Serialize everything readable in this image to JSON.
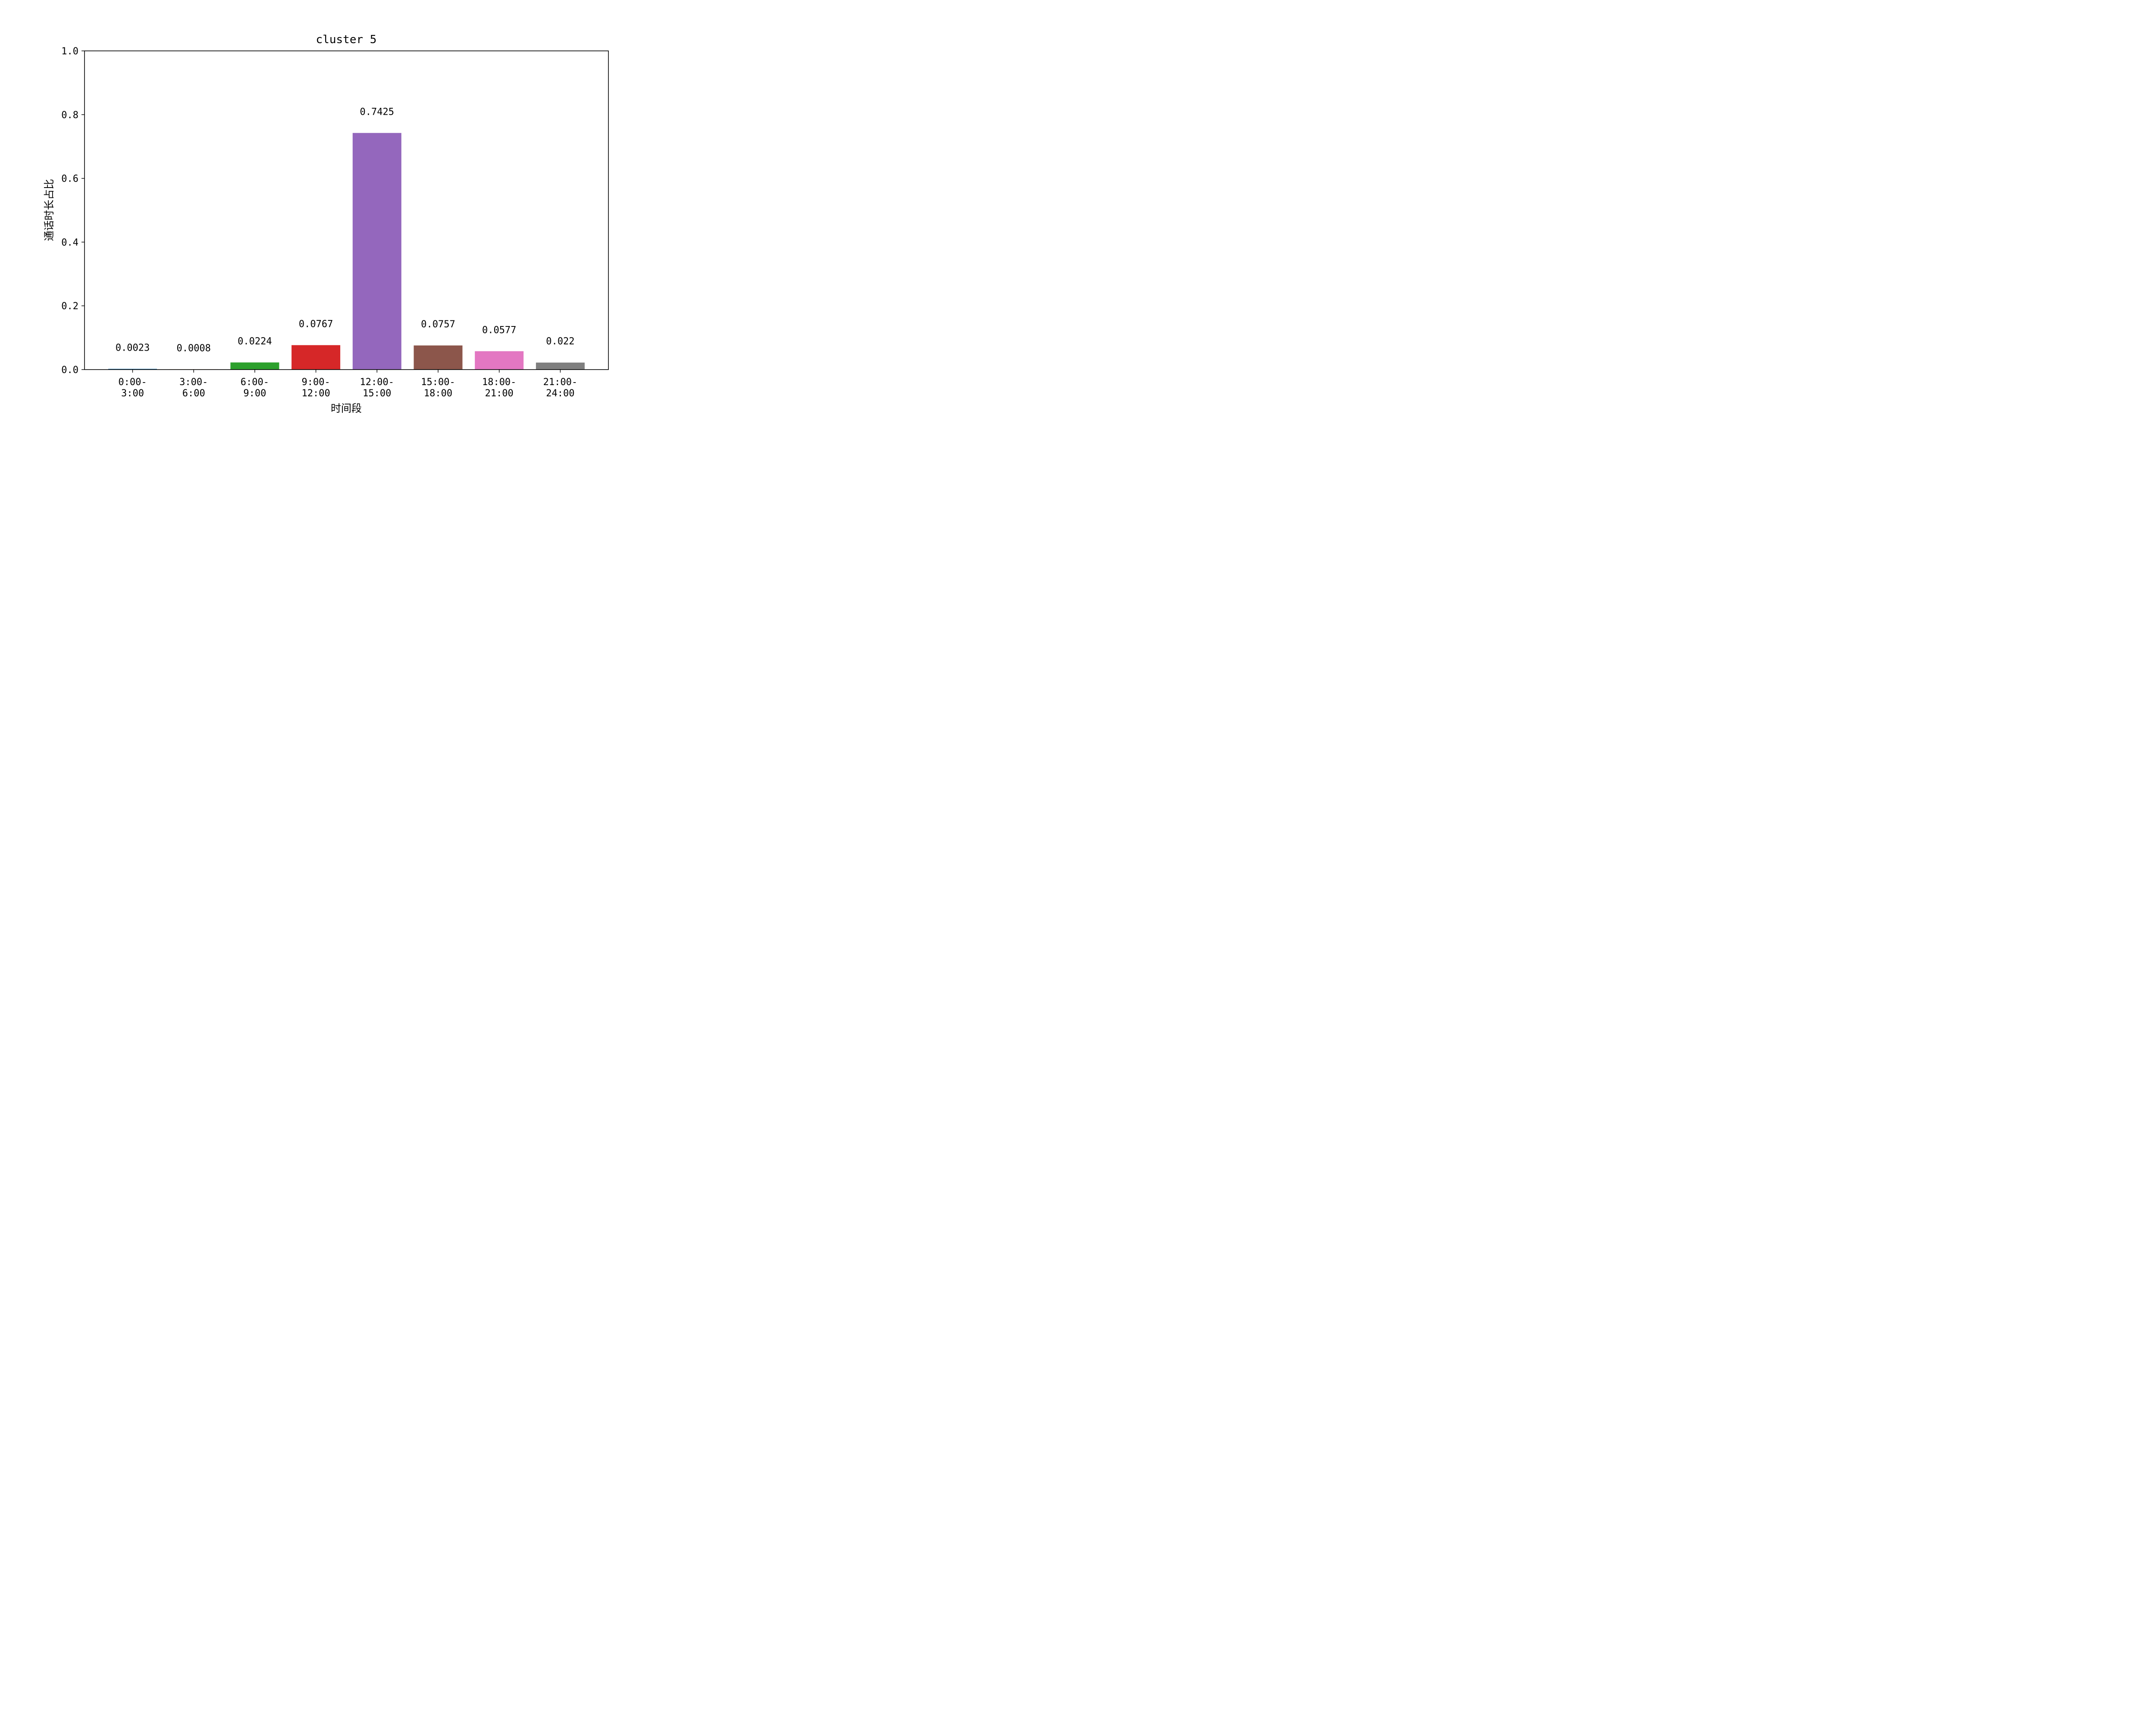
{
  "chart_data": {
    "type": "bar",
    "title": "cluster 5",
    "xlabel": "时间段",
    "ylabel": "通话时长占比",
    "ylim": [
      0,
      1.0
    ],
    "yticks": [
      "0.0",
      "0.2",
      "0.4",
      "0.6",
      "0.8",
      "1.0"
    ],
    "categories": [
      [
        "0:00-",
        "3:00"
      ],
      [
        "3:00-",
        "6:00"
      ],
      [
        "6:00-",
        "9:00"
      ],
      [
        "9:00-",
        "12:00"
      ],
      [
        "12:00-",
        "15:00"
      ],
      [
        "15:00-",
        "18:00"
      ],
      [
        "18:00-",
        "21:00"
      ],
      [
        "21:00-",
        "24:00"
      ]
    ],
    "values": [
      0.0023,
      0.0008,
      0.0224,
      0.0767,
      0.7425,
      0.0757,
      0.0577,
      0.022
    ],
    "value_labels": [
      "0.0023",
      "0.0008",
      "0.0224",
      "0.0767",
      "0.7425",
      "0.0757",
      "0.0577",
      "0.022"
    ],
    "colors": [
      "#1f77b4",
      "#ff7f0e",
      "#2ca02c",
      "#d62728",
      "#9467bd",
      "#8c564b",
      "#e377c2",
      "#7f7f7f"
    ],
    "grid": false,
    "legend": "none"
  }
}
